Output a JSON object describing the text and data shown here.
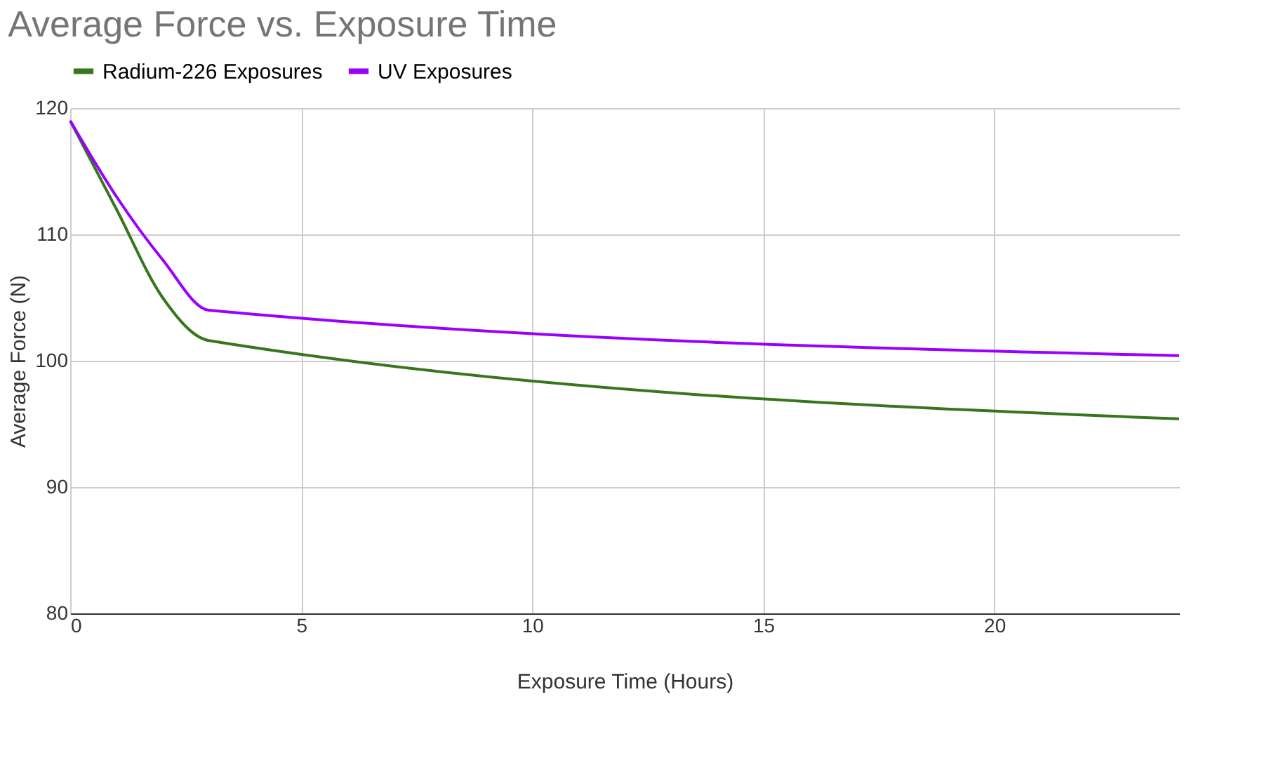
{
  "chart_data": {
    "type": "line",
    "title": "Average Force vs. Exposure Time",
    "xlabel": "Exposure Time (Hours)",
    "ylabel": "Average Force (N)",
    "x": [
      0,
      1,
      2,
      3,
      24
    ],
    "series": [
      {
        "name": "Radium-226 Exposures",
        "color": "#38761d",
        "values": [
          119,
          112,
          105,
          101.6,
          95.4
        ]
      },
      {
        "name": "UV Exposures",
        "color": "#9900ff",
        "values": [
          119,
          113,
          108,
          104,
          100.4
        ]
      }
    ],
    "xlim": [
      0,
      24
    ],
    "xticks": [
      0,
      5,
      10,
      15,
      20
    ],
    "ylim": [
      80,
      120
    ],
    "yticks": [
      80,
      90,
      100,
      110,
      120
    ],
    "grid": true,
    "legend": "top",
    "marker": "none",
    "line_style": "solid"
  }
}
